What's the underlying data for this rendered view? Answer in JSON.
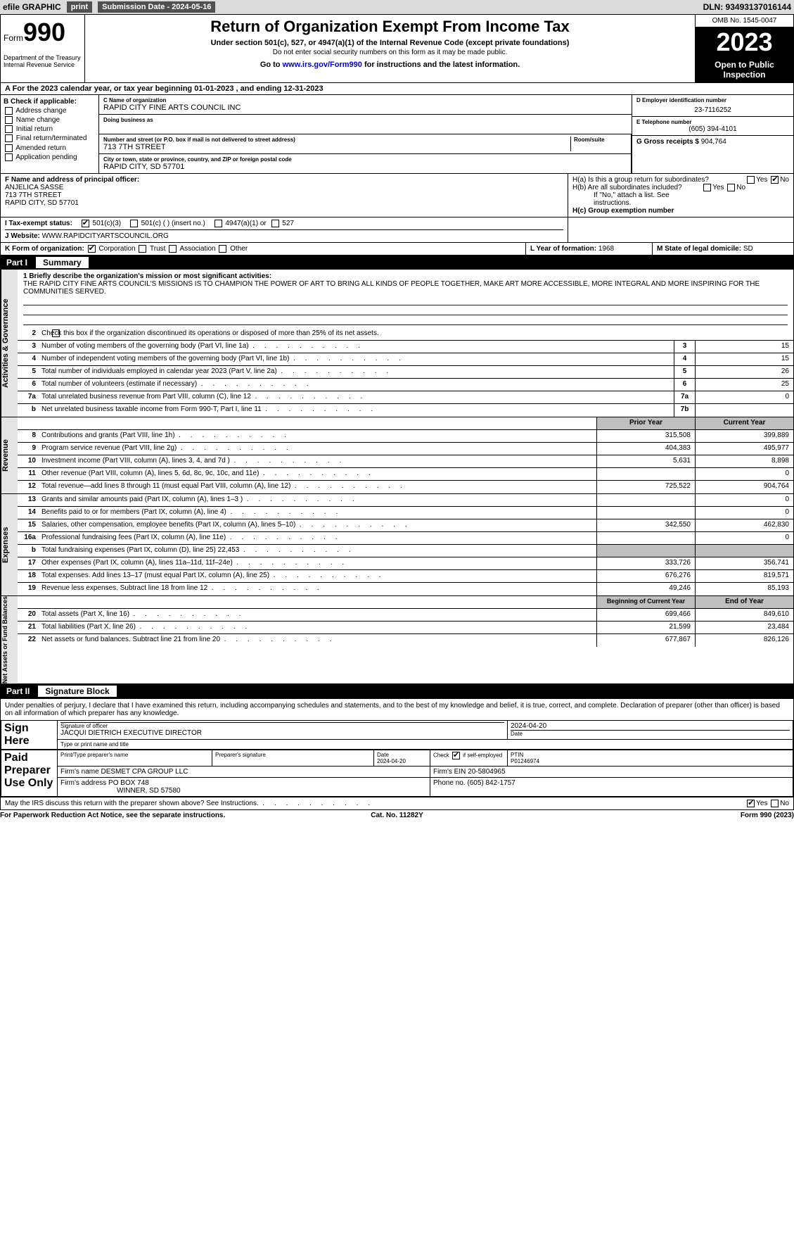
{
  "topbar": {
    "efile": "efile GRAPHIC",
    "print": "print",
    "subdate_lbl": "Submission Date - 2024-05-16",
    "dln": "DLN: 93493137016144"
  },
  "header": {
    "form_word": "Form",
    "form_num": "990",
    "dept": "Department of the Treasury Internal Revenue Service",
    "title": "Return of Organization Exempt From Income Tax",
    "sub1": "Under section 501(c), 527, or 4947(a)(1) of the Internal Revenue Code (except private foundations)",
    "sub2": "Do not enter social security numbers on this form as it may be made public.",
    "goto_pre": "Go to ",
    "goto_link": "www.irs.gov/Form990",
    "goto_post": " for instructions and the latest information.",
    "omb": "OMB No. 1545-0047",
    "year": "2023",
    "open": "Open to Public Inspection"
  },
  "period": "A For the 2023 calendar year, or tax year beginning 01-01-2023   , and ending 12-31-2023",
  "checkB": {
    "hdr": "B Check if applicable:",
    "items": [
      "Address change",
      "Name change",
      "Initial return",
      "Final return/terminated",
      "Amended return",
      "Application pending"
    ]
  },
  "org": {
    "name_lbl": "C Name of organization",
    "name": "RAPID CITY FINE ARTS COUNCIL INC",
    "dba_lbl": "Doing business as",
    "addr_lbl": "Number and street (or P.O. box if mail is not delivered to street address)",
    "room_lbl": "Room/suite",
    "addr": "713 7TH STREET",
    "city_lbl": "City or town, state or province, country, and ZIP or foreign postal code",
    "city": "RAPID CITY, SD  57701",
    "officer_lbl": "F  Name and address of principal officer:",
    "officer": "ANJELICA SASSE\n713 7TH STREET\nRAPID CITY, SD  57701"
  },
  "ein": {
    "lbl": "D Employer identification number",
    "val": "23-7116252"
  },
  "tel": {
    "lbl": "E Telephone number",
    "val": "(605) 394-4101"
  },
  "gross": {
    "lbl": "G Gross receipts $ ",
    "val": "904,764"
  },
  "h": {
    "a": "H(a)  Is this a group return for subordinates?",
    "b": "H(b)  Are all subordinates included?",
    "bnote": "If \"No,\" attach a list. See instructions.",
    "c": "H(c)  Group exemption number ",
    "yes": "Yes",
    "no": "No"
  },
  "i": {
    "lbl": "I   Tax-exempt status:",
    "opts": [
      "501(c)(3)",
      "501(c) (  ) (insert no.)",
      "4947(a)(1) or",
      "527"
    ]
  },
  "j": {
    "lbl": "J   Website: ",
    "val": "WWW.RAPIDCITYARTSCOUNCIL.ORG"
  },
  "k": {
    "lbl": "K Form of organization:",
    "opts": [
      "Corporation",
      "Trust",
      "Association",
      "Other"
    ]
  },
  "l": {
    "lbl": "L Year of formation: ",
    "val": "1968"
  },
  "m": {
    "lbl": "M State of legal domicile: ",
    "val": "SD"
  },
  "part1": {
    "num": "Part I",
    "title": "Summary"
  },
  "mission": {
    "q": "1  Briefly describe the organization's mission or most significant activities:",
    "txt": "THE RAPID CITY FINE ARTS COUNCIL'S MISSIONS IS TO CHAMPION THE POWER OF ART TO BRING ALL KINDS OF PEOPLE TOGETHER, MAKE ART MORE ACCESSIBLE, MORE INTEGRAL AND MORE INSPIRING FOR THE COMMUNITIES SERVED."
  },
  "sidelabels": {
    "ag": "Activities & Governance",
    "rev": "Revenue",
    "exp": "Expenses",
    "net": "Net Assets or Fund Balances"
  },
  "colhdrs": {
    "prior": "Prior Year",
    "current": "Current Year",
    "boc": "Beginning of Current Year",
    "eoy": "End of Year"
  },
  "gov": {
    "l2": "Check this box      if the organization discontinued its operations or disposed of more than 25% of its net assets.",
    "rows": [
      {
        "n": "3",
        "d": "Number of voting members of the governing body (Part VI, line 1a)",
        "k": "3",
        "v": "15"
      },
      {
        "n": "4",
        "d": "Number of independent voting members of the governing body (Part VI, line 1b)",
        "k": "4",
        "v": "15"
      },
      {
        "n": "5",
        "d": "Total number of individuals employed in calendar year 2023 (Part V, line 2a)",
        "k": "5",
        "v": "26"
      },
      {
        "n": "6",
        "d": "Total number of volunteers (estimate if necessary)",
        "k": "6",
        "v": "25"
      },
      {
        "n": "7a",
        "d": "Total unrelated business revenue from Part VIII, column (C), line 12",
        "k": "7a",
        "v": "0"
      },
      {
        "n": "b",
        "d": "Net unrelated business taxable income from Form 990-T, Part I, line 11",
        "k": "7b",
        "v": ""
      }
    ]
  },
  "rev": [
    {
      "n": "8",
      "d": "Contributions and grants (Part VIII, line 1h)",
      "p": "315,508",
      "c": "399,889"
    },
    {
      "n": "9",
      "d": "Program service revenue (Part VIII, line 2g)",
      "p": "404,383",
      "c": "495,977"
    },
    {
      "n": "10",
      "d": "Investment income (Part VIII, column (A), lines 3, 4, and 7d )",
      "p": "5,631",
      "c": "8,898"
    },
    {
      "n": "11",
      "d": "Other revenue (Part VIII, column (A), lines 5, 6d, 8c, 9c, 10c, and 11e)",
      "p": "",
      "c": "0"
    },
    {
      "n": "12",
      "d": "Total revenue—add lines 8 through 11 (must equal Part VIII, column (A), line 12)",
      "p": "725,522",
      "c": "904,764"
    }
  ],
  "exp": [
    {
      "n": "13",
      "d": "Grants and similar amounts paid (Part IX, column (A), lines 1–3 )",
      "p": "",
      "c": "0"
    },
    {
      "n": "14",
      "d": "Benefits paid to or for members (Part IX, column (A), line 4)",
      "p": "",
      "c": "0"
    },
    {
      "n": "15",
      "d": "Salaries, other compensation, employee benefits (Part IX, column (A), lines 5–10)",
      "p": "342,550",
      "c": "462,830"
    },
    {
      "n": "16a",
      "d": "Professional fundraising fees (Part IX, column (A), line 11e)",
      "p": "",
      "c": "0"
    },
    {
      "n": "b",
      "d": "Total fundraising expenses (Part IX, column (D), line 25) 22,453",
      "p": "SHADE",
      "c": "SHADE"
    },
    {
      "n": "17",
      "d": "Other expenses (Part IX, column (A), lines 11a–11d, 11f–24e)",
      "p": "333,726",
      "c": "356,741"
    },
    {
      "n": "18",
      "d": "Total expenses. Add lines 13–17 (must equal Part IX, column (A), line 25)",
      "p": "676,276",
      "c": "819,571"
    },
    {
      "n": "19",
      "d": "Revenue less expenses. Subtract line 18 from line 12",
      "p": "49,246",
      "c": "85,193"
    }
  ],
  "net": [
    {
      "n": "20",
      "d": "Total assets (Part X, line 16)",
      "p": "699,466",
      "c": "849,610"
    },
    {
      "n": "21",
      "d": "Total liabilities (Part X, line 26)",
      "p": "21,599",
      "c": "23,484"
    },
    {
      "n": "22",
      "d": "Net assets or fund balances. Subtract line 21 from line 20",
      "p": "677,867",
      "c": "826,126"
    }
  ],
  "part2": {
    "num": "Part II",
    "title": "Signature Block"
  },
  "perjury": "Under penalties of perjury, I declare that I have examined this return, including accompanying schedules and statements, and to the best of my knowledge and belief, it is true, correct, and complete. Declaration of preparer (other than officer) is based on all information of which preparer has any knowledge.",
  "sign": {
    "here": "Sign Here",
    "sigoff": "Signature of officer",
    "date": "Date",
    "datev": "2024-04-20",
    "name": "JACQUI DIETRICH  EXECUTIVE DIRECTOR",
    "typelbl": "Type or print name and title"
  },
  "paid": {
    "side": "Paid Preparer Use Only",
    "ptname": "Print/Type preparer's name",
    "psig": "Preparer's signature",
    "pdate": "Date",
    "pdatev": "2024-04-20",
    "chkse": "Check       if self-employed",
    "ptin": "PTIN",
    "ptinv": "P01246974",
    "firm_lbl": "Firm's name   ",
    "firm": "DESMET CPA GROUP LLC",
    "fein_lbl": "Firm's EIN  ",
    "fein": "20-5804965",
    "faddr_lbl": "Firm's address ",
    "faddr1": "PO BOX 748",
    "faddr2": "WINNER, SD  57580",
    "phone_lbl": "Phone no. ",
    "phone": "(605) 842-1757",
    "discuss": "May the IRS discuss this return with the preparer shown above? See Instructions."
  },
  "footer": {
    "l": "For Paperwork Reduction Act Notice, see the separate instructions.",
    "c": "Cat. No. 11282Y",
    "r": "Form 990 (2023)"
  }
}
